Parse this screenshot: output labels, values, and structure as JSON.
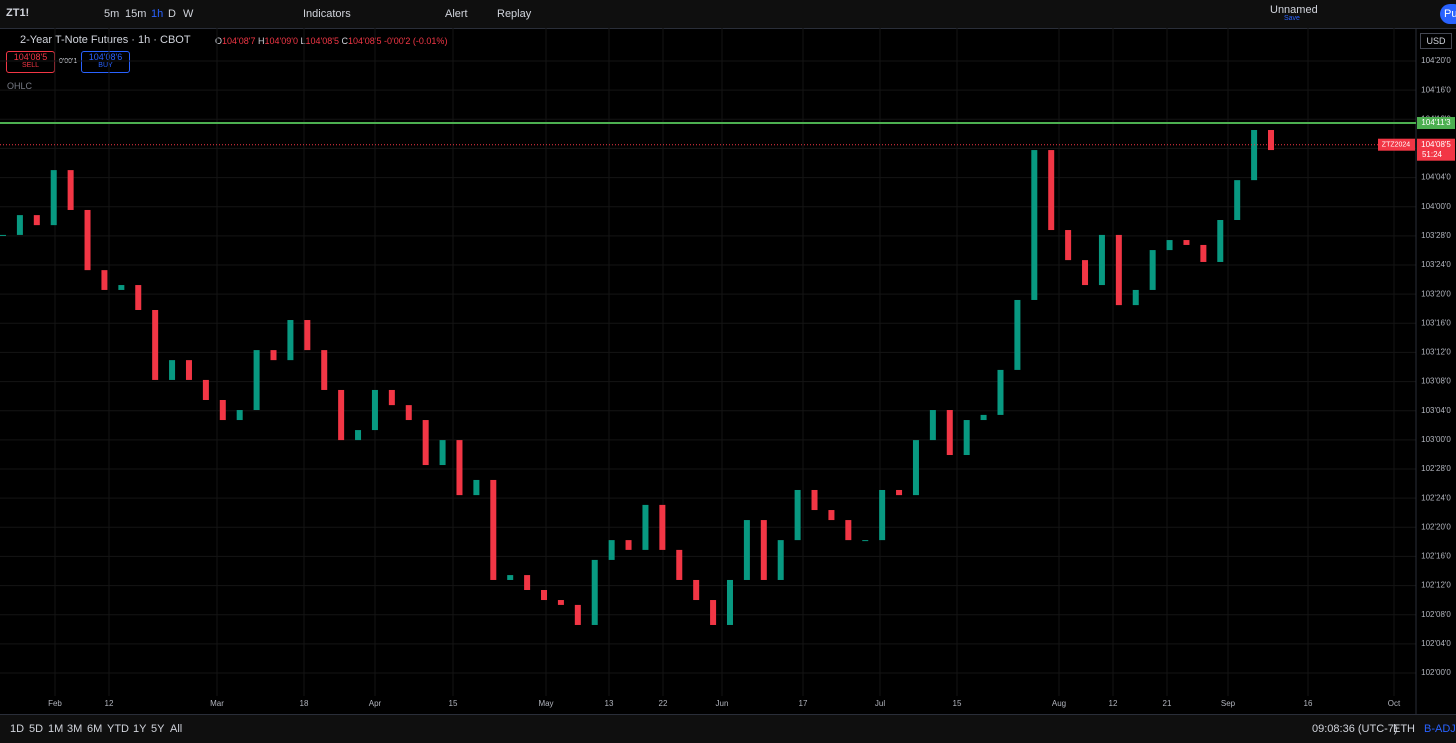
{
  "toolbar": {
    "symbol": "ZT1!",
    "intervals": [
      "5m",
      "15m",
      "1h",
      "D",
      "W"
    ],
    "indicators": "Indicators",
    "alert": "Alert",
    "replay": "Replay",
    "layout_name": "Unnamed",
    "save": "Save",
    "publish": "Pu"
  },
  "legend": {
    "title": "2-Year T-Note Futures · 1h · CBOT",
    "open_key": "O",
    "open": "104'08'7",
    "high_key": "H",
    "high": "104'09'0",
    "low_key": "L",
    "low": "104'08'5",
    "close_key": "C",
    "close": "104'08'5",
    "change": "-0'00'2 (-0.01%)",
    "sell_price": "104'08'5",
    "sell": "SELL",
    "spread": "0'00'1",
    "buy_price": "104'08'6",
    "buy": "BUY",
    "ohlc": "OHLC"
  },
  "chart": {
    "currency": "USD",
    "yticks": [
      {
        "value": 102.0,
        "label": "102'00'0"
      },
      {
        "value": 102.125,
        "label": "102'04'0"
      },
      {
        "value": 102.25,
        "label": "102'08'0"
      },
      {
        "value": 102.375,
        "label": "102'12'0"
      },
      {
        "value": 102.5,
        "label": "102'16'0"
      },
      {
        "value": 102.625,
        "label": "102'20'0"
      },
      {
        "value": 102.75,
        "label": "102'24'0"
      },
      {
        "value": 102.875,
        "label": "102'28'0"
      },
      {
        "value": 103.0,
        "label": "103'00'0"
      },
      {
        "value": 103.125,
        "label": "103'04'0"
      },
      {
        "value": 103.25,
        "label": "103'08'0"
      },
      {
        "value": 103.375,
        "label": "103'12'0"
      },
      {
        "value": 103.5,
        "label": "103'16'0"
      },
      {
        "value": 103.625,
        "label": "103'20'0"
      },
      {
        "value": 103.75,
        "label": "103'24'0"
      },
      {
        "value": 103.875,
        "label": "103'28'0"
      },
      {
        "value": 104.0,
        "label": "104'00'0"
      },
      {
        "value": 104.125,
        "label": "104'04'0"
      },
      {
        "value": 104.25,
        "label": "104'08'0"
      },
      {
        "value": 104.375,
        "label": "104'12'0"
      },
      {
        "value": 104.5,
        "label": "104'16'0"
      },
      {
        "value": 104.625,
        "label": "104'20'0"
      }
    ],
    "time_labels": [
      "Feb",
      "12",
      "Mar",
      "18",
      "Apr",
      "15",
      "May",
      "13",
      "22",
      "Jun",
      "17",
      "Jul",
      "15",
      "Aug",
      "12",
      "21",
      "Sep",
      "16",
      "Oct"
    ],
    "closes": [
      103.879,
      103.964,
      103.921,
      104.157,
      103.986,
      103.728,
      103.643,
      103.664,
      103.557,
      103.257,
      103.342,
      103.257,
      103.171,
      103.085,
      103.128,
      103.385,
      103.342,
      103.514,
      103.385,
      103.214,
      102.999,
      103.042,
      103.214,
      103.149,
      103.085,
      102.892,
      102.999,
      102.763,
      102.828,
      102.399,
      102.42,
      102.356,
      102.313,
      102.292,
      102.206,
      102.485,
      102.57,
      102.528,
      102.721,
      102.528,
      102.399,
      102.313,
      102.206,
      102.399,
      102.656,
      102.399,
      102.57,
      102.785,
      102.699,
      102.656,
      102.57,
      102.57,
      102.785,
      102.763,
      102.999,
      103.128,
      102.935,
      103.085,
      103.107,
      103.3,
      103.6,
      104.243,
      103.9,
      103.771,
      103.664,
      103.879,
      103.578,
      103.643,
      103.814,
      103.857,
      103.836,
      103.763,
      103.943,
      104.114,
      104.329,
      104.243
    ],
    "alert_level": {
      "value": 104.359,
      "label": "104'11'3"
    },
    "last_price": {
      "value": 104.266,
      "label": "104'08'5",
      "symbol": "ZTZ2024",
      "countdown": "51:24"
    }
  },
  "bottom": {
    "ranges": [
      "1D",
      "5D",
      "1M",
      "3M",
      "6M",
      "YTD",
      "1Y",
      "5Y",
      "All"
    ],
    "clock": "09:08:36 (UTC-7)",
    "session": "ETH",
    "adjust": "B-ADJ"
  }
}
